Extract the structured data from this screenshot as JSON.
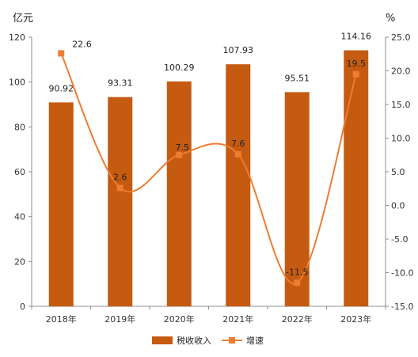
{
  "chart_data": {
    "type": "bar+line",
    "categories": [
      "2018年",
      "2019年",
      "2020年",
      "2021年",
      "2022年",
      "2023年"
    ],
    "series": [
      {
        "name": "税收收入",
        "type": "bar",
        "axis": "left",
        "color": "#C55A11",
        "values": [
          90.92,
          93.31,
          100.29,
          107.93,
          95.51,
          114.16
        ],
        "labels": [
          "90.92",
          "93.31",
          "100.29",
          "107.93",
          "95.51",
          "114.16"
        ]
      },
      {
        "name": "增速",
        "type": "line",
        "smooth": true,
        "axis": "right",
        "color": "#ED7D31",
        "values": [
          22.6,
          2.6,
          7.5,
          7.6,
          -11.5,
          19.5
        ],
        "labels": [
          "22.6",
          "2.6",
          "7.5",
          "7.6",
          "-11.5",
          "19.5"
        ]
      }
    ],
    "y_left": {
      "unit": "亿元",
      "ylim": [
        0,
        120
      ],
      "ticks": [
        0,
        20,
        40,
        60,
        80,
        100,
        120
      ],
      "tick_labels": [
        "0",
        "20",
        "40",
        "60",
        "80",
        "100",
        "120"
      ]
    },
    "y_right": {
      "unit": "%",
      "ylim": [
        -15,
        25
      ],
      "ticks": [
        -15,
        -10,
        -5,
        0,
        5,
        10,
        15,
        20,
        25
      ],
      "tick_labels": [
        "-15.0",
        "-10.0",
        "-5.0",
        "0.0",
        "5.0",
        "10.0",
        "15.0",
        "20.0",
        "25.0"
      ]
    },
    "grid": false,
    "legend_position": "bottom"
  }
}
